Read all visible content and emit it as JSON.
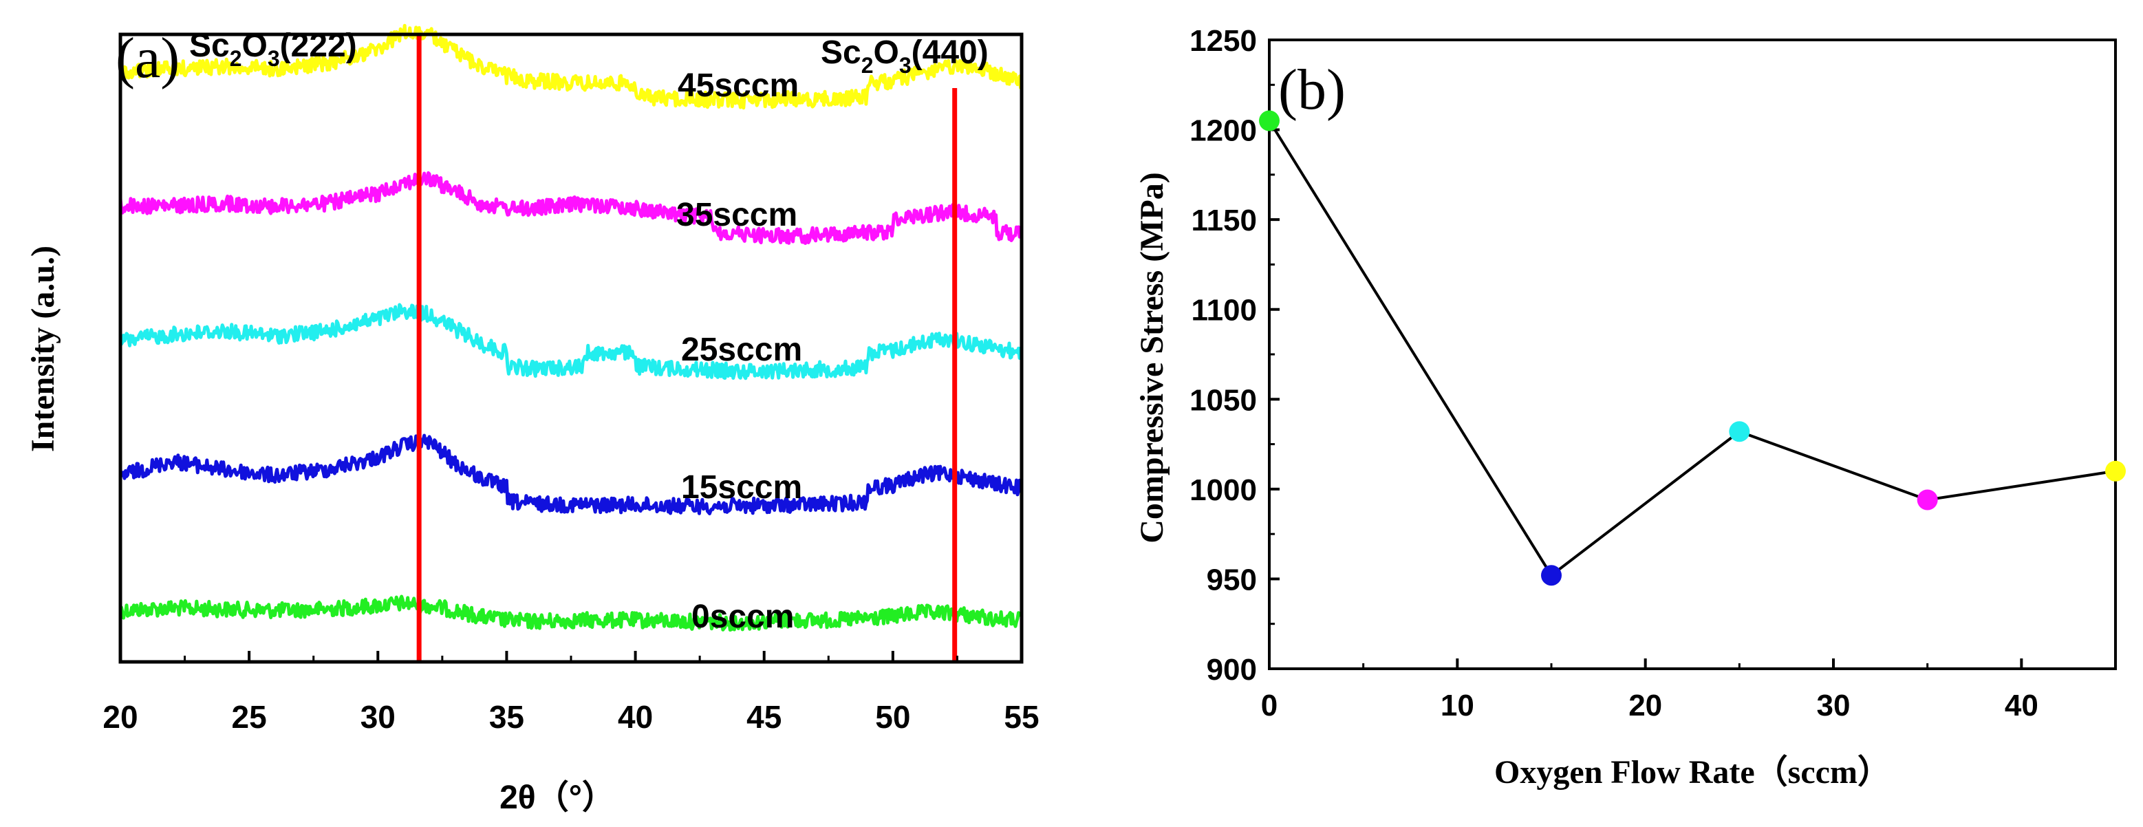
{
  "chart_data": [
    {
      "type": "line",
      "panel_label": "(a)",
      "title": "",
      "xlabel": "2θ（°）",
      "ylabel": "Intensity (a.u.)",
      "xlim": [
        20,
        55
      ],
      "x_ticks": [
        "20",
        "25",
        "30",
        "35",
        "40",
        "45",
        "50",
        "55"
      ],
      "y_ticks": [],
      "grid": false,
      "series": [
        {
          "name": "0sccm",
          "color": "#22ee22",
          "x": [
            20,
            22,
            24,
            26,
            28,
            30,
            31,
            32,
            33,
            34,
            35,
            36,
            38,
            40,
            42,
            44,
            46,
            48,
            50,
            51,
            52,
            53,
            54,
            55
          ],
          "values": [
            0.1,
            0.12,
            0.11,
            0.1,
            0.11,
            0.14,
            0.16,
            0.14,
            0.1,
            0.05,
            0.02,
            0.01,
            0.02,
            0.02,
            0.01,
            0.0,
            0.02,
            0.02,
            0.05,
            0.08,
            0.08,
            0.06,
            0.03,
            0.02
          ]
        },
        {
          "name": "15sccm",
          "color": "#1111dd",
          "x": [
            20,
            22,
            24,
            26,
            28,
            30,
            31,
            32,
            33,
            34,
            35,
            36,
            38,
            40,
            42,
            44,
            46,
            48,
            50,
            51,
            52,
            53,
            54,
            55
          ],
          "values": [
            1.1,
            1.22,
            1.15,
            1.1,
            1.15,
            1.25,
            1.35,
            1.38,
            1.2,
            1.08,
            1.0,
            0.98,
            0.97,
            0.97,
            0.96,
            0.96,
            0.97,
            0.98,
            1.02,
            1.1,
            1.12,
            1.08,
            1.03,
            1.0
          ]
        },
        {
          "name": "25sccm",
          "color": "#22eeee",
          "x": [
            20,
            22,
            24,
            26,
            28,
            30,
            31,
            32,
            33,
            34,
            35,
            36,
            38,
            40,
            42,
            44,
            46,
            48,
            50,
            51,
            52,
            53,
            54,
            55
          ],
          "values": [
            2.1,
            2.15,
            2.18,
            2.14,
            2.18,
            2.28,
            2.35,
            2.32,
            2.2,
            2.08,
            2.0,
            1.98,
            2.0,
            2.0,
            1.98,
            1.96,
            1.97,
            1.98,
            2.02,
            2.08,
            2.12,
            2.08,
            2.04,
            2.0
          ]
        },
        {
          "name": "35sccm",
          "color": "#ff11ff",
          "x": [
            20,
            22,
            24,
            26,
            28,
            30,
            31,
            32,
            33,
            34,
            35,
            36,
            38,
            40,
            42,
            44,
            46,
            48,
            50,
            51,
            52,
            53,
            54,
            55
          ],
          "values": [
            3.1,
            3.1,
            3.12,
            3.1,
            3.12,
            3.2,
            3.3,
            3.32,
            3.22,
            3.12,
            3.08,
            3.08,
            3.12,
            3.08,
            3.02,
            2.98,
            2.96,
            2.98,
            3.0,
            3.02,
            3.05,
            3.04,
            3.0,
            2.98
          ]
        },
        {
          "name": "45sccm",
          "color": "#ffff11",
          "x": [
            20,
            22,
            24,
            26,
            28,
            30,
            31,
            32,
            33,
            34,
            35,
            36,
            38,
            40,
            42,
            44,
            46,
            48,
            50,
            51,
            52,
            53,
            54,
            55
          ],
          "values": [
            4.1,
            4.12,
            4.14,
            4.12,
            4.16,
            4.28,
            4.42,
            4.4,
            4.26,
            4.14,
            4.06,
            4.02,
            4.0,
            4.0,
            3.98,
            3.97,
            3.98,
            3.98,
            4.02,
            4.08,
            4.12,
            4.14,
            4.08,
            4.0
          ]
        }
      ],
      "reference_lines": [
        {
          "x": 31.6,
          "color": "#ff0000"
        },
        {
          "x": 52.4,
          "color": "#ff0000"
        }
      ],
      "annotations": [
        {
          "base": "Sc",
          "sub1": "2",
          "mid": "O",
          "sub2": "3",
          "tail": "(222)"
        },
        {
          "base": "Sc",
          "sub1": "2",
          "mid": "O",
          "sub2": "3",
          "tail": "(440)"
        }
      ]
    },
    {
      "type": "scatter",
      "panel_label": "(b)",
      "title": "",
      "xlabel": "Oxygen Flow Rate（sccm）",
      "ylabel": "Compressive Stress (MPa)",
      "xlim": [
        0,
        45
      ],
      "ylim": [
        900,
        1250
      ],
      "x_ticks": [
        "0",
        "10",
        "20",
        "30",
        "40"
      ],
      "y_ticks": [
        "900",
        "950",
        "1000",
        "1050",
        "1100",
        "1150",
        "1200",
        "1250"
      ],
      "grid": false,
      "series": [
        {
          "name": "Compressive Stress",
          "line_color": "#000000",
          "x": [
            0,
            15,
            25,
            35,
            45
          ],
          "values": [
            1205,
            952,
            1032,
            994,
            1010
          ],
          "point_colors": [
            "#22ee22",
            "#1111dd",
            "#22eeee",
            "#ff11ff",
            "#ffff11"
          ]
        }
      ]
    }
  ]
}
